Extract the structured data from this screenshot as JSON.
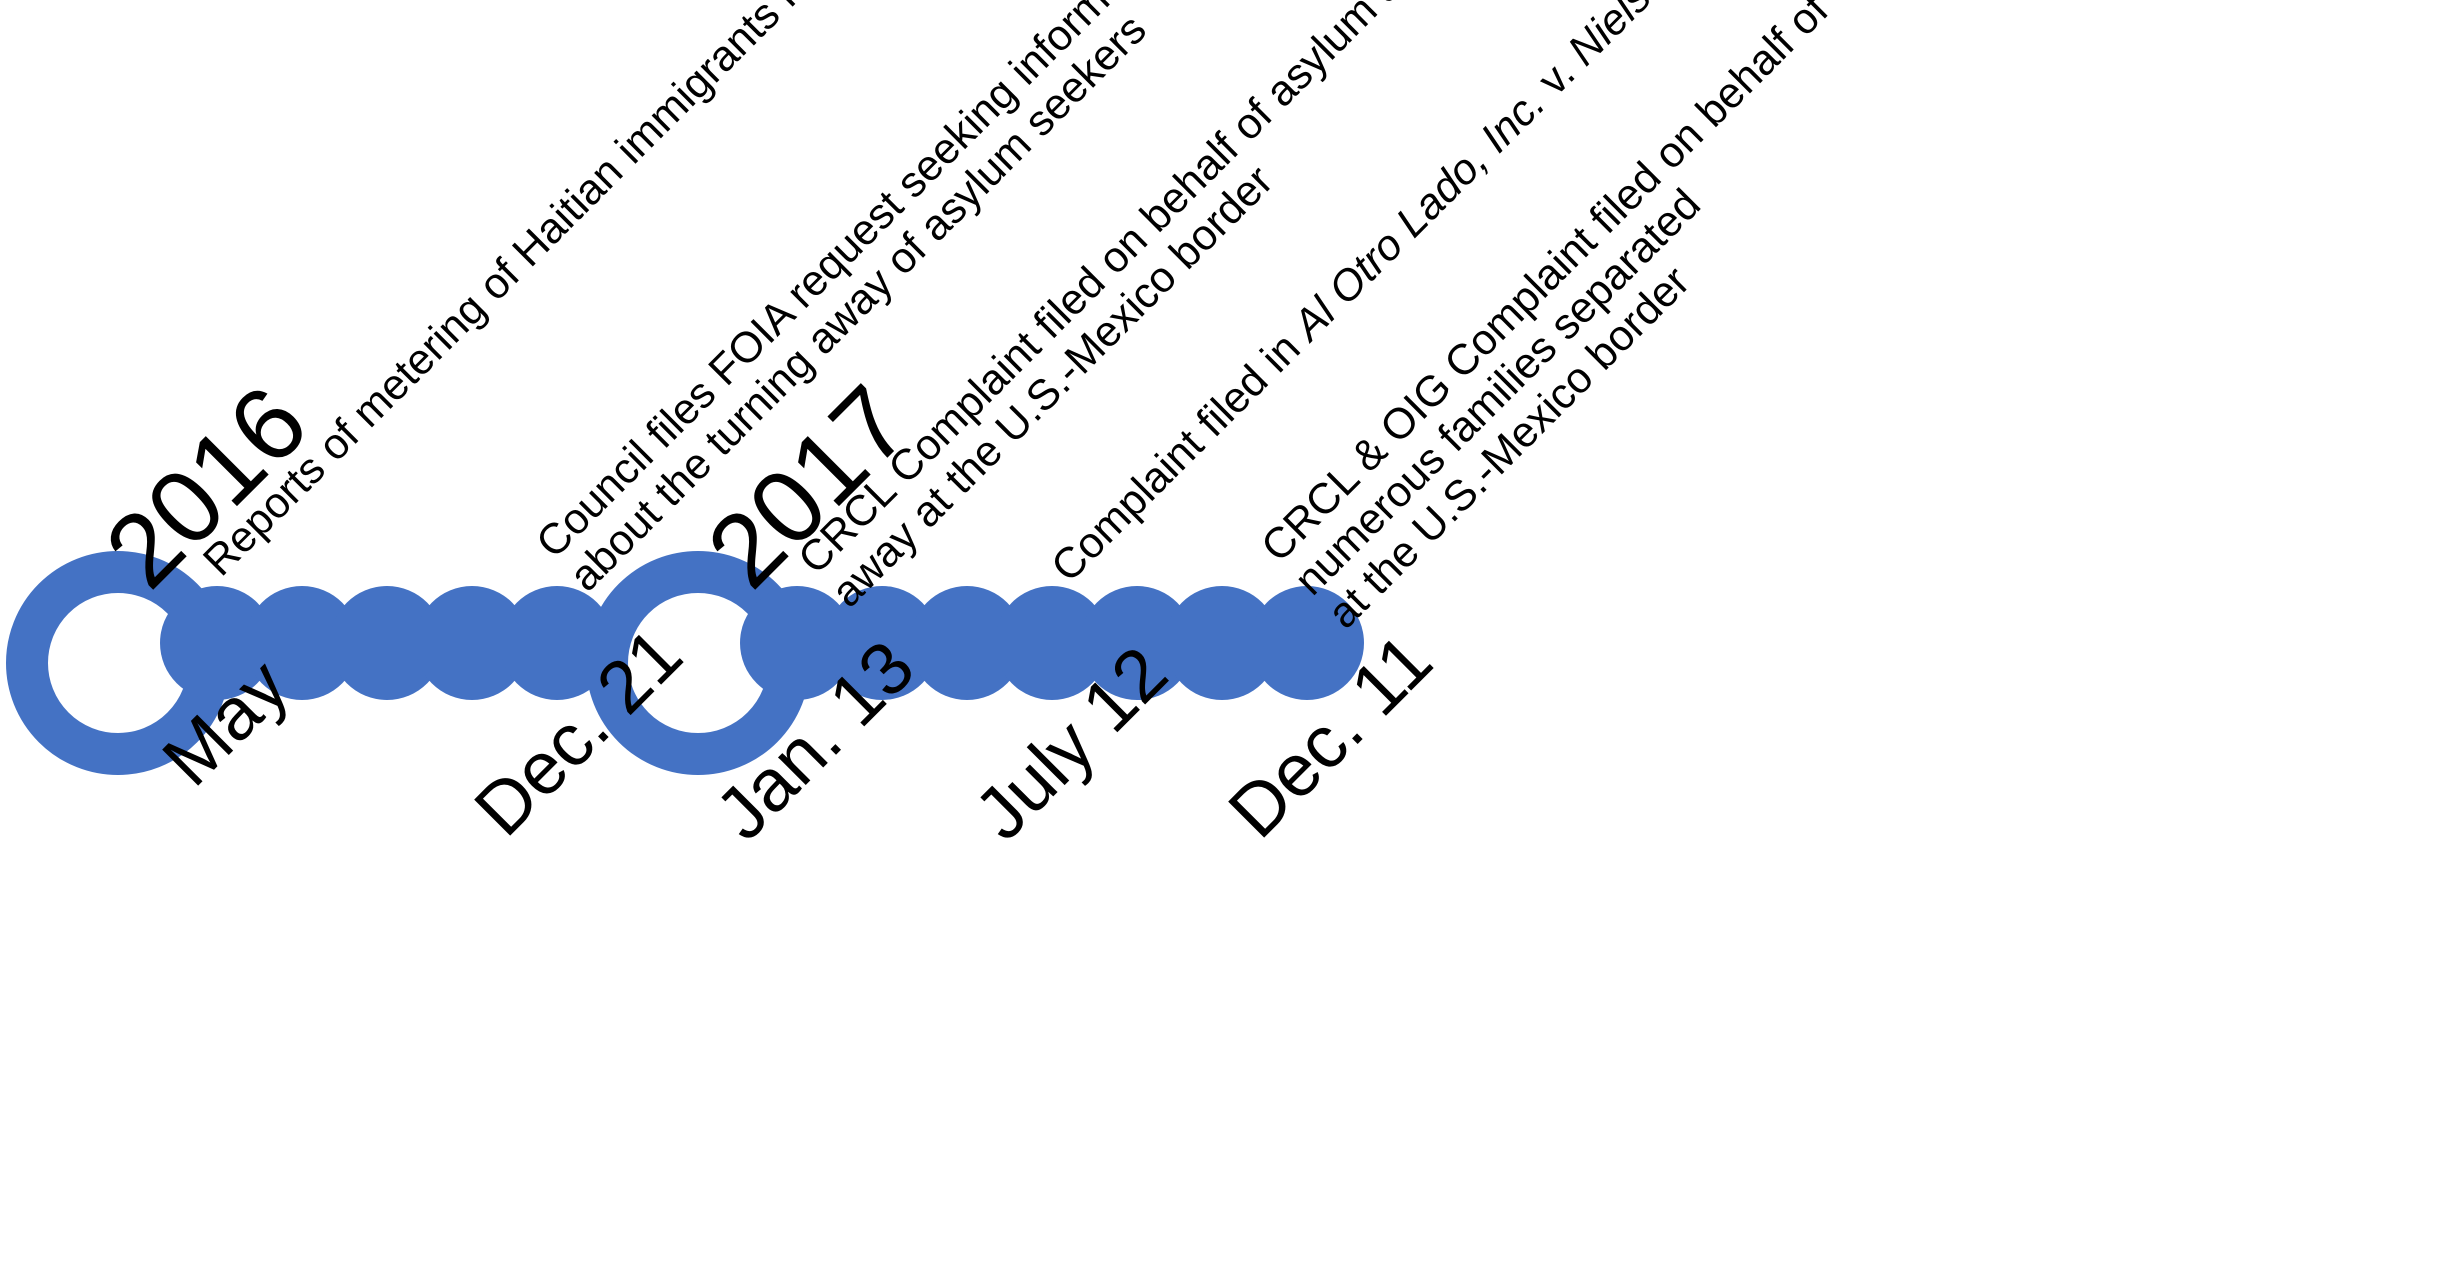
{
  "header": {
    "cut_off_text": ""
  },
  "colors": {
    "accent": "#4472c4",
    "text": "#000000"
  },
  "years": [
    {
      "label": "2016"
    },
    {
      "label": "2017"
    }
  ],
  "dates": [
    {
      "label": "May"
    },
    {
      "label": "Dec. 21"
    },
    {
      "label": "Jan.  13"
    },
    {
      "label": "July 12"
    },
    {
      "label": "Dec. 11"
    }
  ],
  "events": [
    {
      "lines": [
        "Reports of metering of Haitian immigrants in Tijuana"
      ]
    },
    {
      "lines": [
        "Council files FOIA request seeking information",
        "about the turning away of asylum seekers"
      ]
    },
    {
      "lines": [
        "CRCL Complaint filed on behalf of asylum seekers turned",
        "away at the U.S.-Mexico border"
      ]
    },
    {
      "prefix": "Complaint filed in ",
      "case_name_part1": "Al Otro Lado, Inc.",
      "connector": " v. ",
      "case_name_part2": "Nielsen"
    },
    {
      "lines": [
        "CRCL & OIG Complaint filed on behalf of",
        "numerous families separated",
        "at the U.S.-Mexico border"
      ]
    }
  ]
}
